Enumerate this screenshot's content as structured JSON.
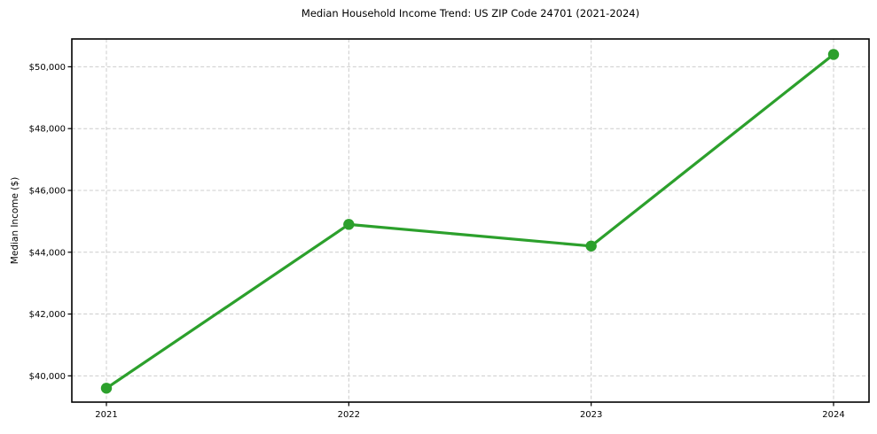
{
  "chart_data": {
    "type": "line",
    "title": "Median Household Income Trend: US ZIP Code 24701 (2021-2024)",
    "xlabel": "",
    "ylabel": "Median Income ($)",
    "x": [
      2021,
      2022,
      2023,
      2024
    ],
    "x_tick_labels": [
      "2021",
      "2022",
      "2023",
      "2024"
    ],
    "series": [
      {
        "name": "Median Household Income",
        "values": [
          39600,
          44900,
          44200,
          50400
        ]
      }
    ],
    "y_ticks": [
      40000,
      42000,
      44000,
      46000,
      48000,
      50000
    ],
    "y_tick_labels": [
      "$40,000",
      "$42,000",
      "$44,000",
      "$46,000",
      "$48,000",
      "$50,000"
    ],
    "ylim": [
      39150,
      50900
    ],
    "grid": true,
    "grid_style": "dashed",
    "legend_position": "none",
    "colors": {
      "line": "#2ca02c",
      "marker": "#2ca02c",
      "grid": "#cccccc",
      "axis": "#000000",
      "text": "#000000",
      "background": "#ffffff"
    }
  }
}
